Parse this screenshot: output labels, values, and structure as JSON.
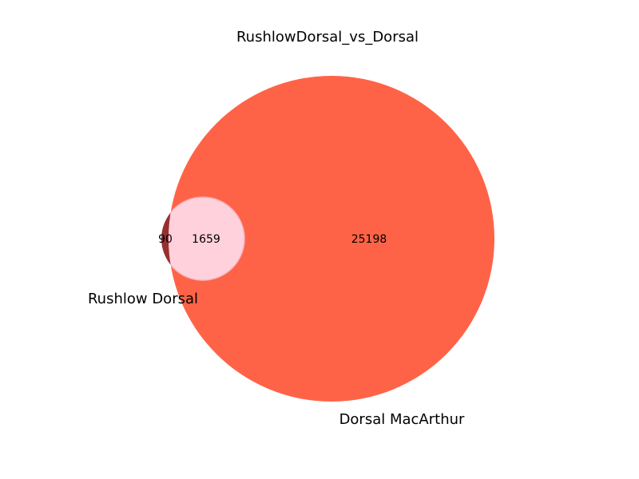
{
  "chart_data": {
    "type": "venn",
    "title": "RushlowDorsal_vs_Dorsal",
    "sets": [
      {
        "name": "Rushlow Dorsal",
        "color": "#8b1a1a"
      },
      {
        "name": "Dorsal MacArthur",
        "color": "#ff6347"
      }
    ],
    "regions": {
      "only_a": 90,
      "intersection": 1659,
      "only_b": 25198
    },
    "intersection_color": "#ffd1dc"
  }
}
